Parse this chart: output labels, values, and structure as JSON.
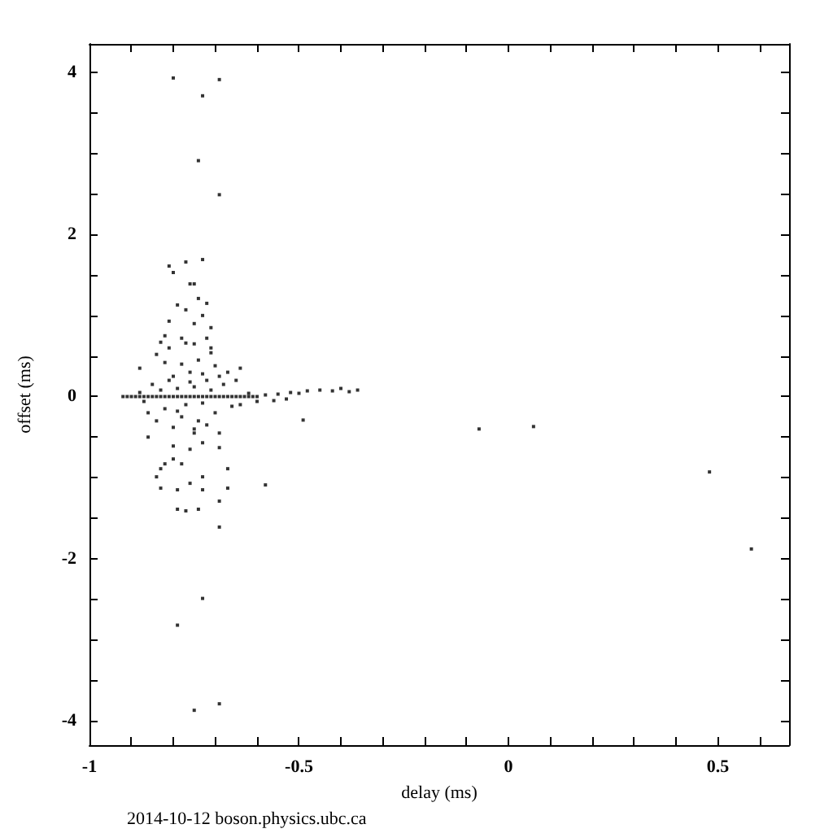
{
  "chart_data": {
    "type": "scatter",
    "xlabel": "delay (ms)",
    "ylabel": "offset (ms)",
    "annotations": [
      "2014-10-12 boson.physics.ubc.ca"
    ],
    "marker": "square",
    "grid": false,
    "xlim": [
      -1,
      0.67
    ],
    "ylim": [
      -4.3,
      4.35
    ],
    "xticks": [
      -1,
      {
        "value": -0.9,
        "label": null
      },
      {
        "value": -0.8,
        "label": null
      },
      {
        "value": -0.7,
        "label": null
      },
      {
        "value": -0.6,
        "label": null
      },
      -0.5,
      {
        "value": -0.4,
        "label": null
      },
      {
        "value": -0.3,
        "label": null
      },
      {
        "value": -0.2,
        "label": null
      },
      {
        "value": -0.1,
        "label": null
      },
      0,
      {
        "value": 0.1,
        "label": null
      },
      {
        "value": 0.2,
        "label": null
      },
      {
        "value": 0.3,
        "label": null
      },
      {
        "value": 0.4,
        "label": null
      },
      0.5,
      {
        "value": 0.6,
        "label": null
      }
    ],
    "yticks": [
      -4,
      {
        "value": -3.5,
        "label": null
      },
      {
        "value": -3,
        "label": null
      },
      {
        "value": -2.5,
        "label": null
      },
      -2,
      {
        "value": -1.5,
        "label": null
      },
      {
        "value": -1,
        "label": null
      },
      {
        "value": -0.5,
        "label": null
      },
      0,
      {
        "value": 0.5,
        "label": null
      },
      {
        "value": 1,
        "label": null
      },
      {
        "value": 1.5,
        "label": null
      },
      2,
      {
        "value": 2.5,
        "label": null
      },
      {
        "value": 3,
        "label": null
      },
      {
        "value": 3.5,
        "label": null
      },
      4
    ],
    "series": [
      {
        "color": "#000000",
        "x": [
          -0.8,
          -0.69,
          -0.73,
          -0.74,
          -0.69,
          -0.73,
          -0.77,
          -0.81,
          -0.8,
          -0.76,
          -0.75,
          -0.74,
          -0.72,
          -0.79,
          -0.77,
          -0.73,
          -0.81,
          -0.75,
          -0.71,
          -0.82,
          -0.78,
          -0.72,
          -0.83,
          -0.77,
          -0.75,
          -0.81,
          -0.71,
          -0.84,
          -0.71,
          -0.88,
          -0.64,
          -0.49,
          -0.07,
          0.06,
          0.48,
          0.58,
          -0.58,
          -0.67,
          -0.67,
          -0.69,
          -0.69,
          -0.73,
          -0.79,
          -0.69,
          -0.75,
          -0.79,
          -0.77,
          -0.74,
          -0.83,
          -0.79,
          -0.73,
          -0.76,
          -0.84,
          -0.83,
          -0.82,
          -0.8,
          -0.78,
          -0.73,
          -0.8,
          -0.76,
          -0.73,
          -0.69,
          -0.86,
          -0.75,
          -0.69,
          -0.92,
          -0.91,
          -0.9,
          -0.89,
          -0.88,
          -0.87,
          -0.86,
          -0.85,
          -0.84,
          -0.83,
          -0.82,
          -0.81,
          -0.8,
          -0.79,
          -0.78,
          -0.77,
          -0.76,
          -0.75,
          -0.74,
          -0.73,
          -0.72,
          -0.71,
          -0.7,
          -0.69,
          -0.68,
          -0.67,
          -0.66,
          -0.65,
          -0.64,
          -0.63,
          -0.62,
          -0.61,
          -0.6,
          -0.58,
          -0.55,
          -0.52,
          -0.5,
          -0.48,
          -0.45,
          -0.42,
          -0.4,
          -0.38,
          -0.36,
          -0.56,
          -0.53,
          -0.6,
          -0.62,
          -0.64,
          -0.85,
          -0.82,
          -0.8,
          -0.78,
          -0.76,
          -0.74,
          -0.72,
          -0.7,
          -0.68,
          -0.66,
          -0.84,
          -0.79,
          -0.77,
          -0.75,
          -0.73,
          -0.71,
          -0.81,
          -0.83,
          -0.87,
          -0.69,
          -0.75,
          -0.8,
          -0.72,
          -0.78,
          -0.74,
          -0.7,
          -0.82,
          -0.76,
          -0.73,
          -0.79,
          -0.67,
          -0.65,
          -0.86,
          -0.88
        ],
        "values": [
          3.93,
          3.91,
          3.71,
          2.91,
          2.49,
          1.69,
          1.66,
          1.61,
          1.53,
          1.39,
          1.39,
          1.21,
          1.15,
          1.13,
          1.07,
          1.0,
          0.93,
          0.9,
          0.85,
          0.75,
          0.72,
          0.72,
          0.67,
          0.66,
          0.65,
          0.6,
          0.6,
          0.52,
          0.54,
          0.35,
          0.35,
          -0.29,
          -0.4,
          -0.37,
          -0.93,
          -1.88,
          -1.09,
          -0.89,
          -1.13,
          -1.29,
          -1.61,
          -2.49,
          -2.82,
          -3.79,
          -3.87,
          -1.39,
          -1.41,
          -1.39,
          -1.13,
          -1.15,
          -1.15,
          -1.07,
          -0.99,
          -0.89,
          -0.83,
          -0.77,
          -0.83,
          -0.99,
          -0.61,
          -0.65,
          -0.57,
          -0.63,
          -0.5,
          -0.45,
          -0.45,
          0,
          0,
          0,
          0,
          0,
          0,
          0,
          0,
          0,
          0,
          0,
          0,
          0,
          0,
          0,
          0,
          0,
          0,
          0,
          0,
          0,
          0,
          0,
          0,
          0,
          0,
          0,
          0,
          0,
          0,
          0,
          0,
          0,
          0.02,
          0.03,
          0.05,
          0.04,
          0.07,
          0.08,
          0.07,
          0.1,
          0.06,
          0.08,
          -0.05,
          -0.03,
          -0.06,
          0.04,
          -0.1,
          0.15,
          -0.15,
          0.25,
          -0.25,
          0.3,
          -0.3,
          0.2,
          -0.2,
          0.15,
          -0.12,
          -0.3,
          0.1,
          -0.1,
          0.12,
          -0.08,
          0.08,
          0.2,
          0.08,
          -0.06,
          0.25,
          -0.4,
          -0.38,
          -0.35,
          0.4,
          0.45,
          0.38,
          0.42,
          0.18,
          0.28,
          -0.18,
          0.3,
          0.2,
          -0.2,
          0.05
        ]
      }
    ]
  }
}
